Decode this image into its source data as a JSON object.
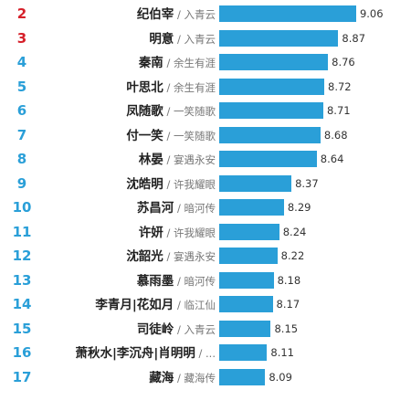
{
  "colors": {
    "bar": "#2a9fd8",
    "rank_top": "#d6202a",
    "rank_normal": "#2a9fd8"
  },
  "chart_data": {
    "type": "bar",
    "orientation": "horizontal",
    "separator": "/",
    "rows": [
      {
        "rank": "2",
        "name": "纪伯宰",
        "work": "入青云",
        "value": 9.06
      },
      {
        "rank": "3",
        "name": "明意",
        "work": "入青云",
        "value": 8.87
      },
      {
        "rank": "4",
        "name": "秦南",
        "work": "余生有涯",
        "value": 8.76
      },
      {
        "rank": "5",
        "name": "叶思北",
        "work": "余生有涯",
        "value": 8.72
      },
      {
        "rank": "6",
        "name": "凤随歌",
        "work": "一笑随歌",
        "value": 8.71
      },
      {
        "rank": "7",
        "name": "付一笑",
        "work": "一笑随歌",
        "value": 8.68
      },
      {
        "rank": "8",
        "name": "林晏",
        "work": "宴遇永安",
        "value": 8.64
      },
      {
        "rank": "9",
        "name": "沈皓明",
        "work": "许我耀眼",
        "value": 8.37
      },
      {
        "rank": "10",
        "name": "苏昌河",
        "work": "暗河传",
        "value": 8.29
      },
      {
        "rank": "11",
        "name": "许妍",
        "work": "许我耀眼",
        "value": 8.24
      },
      {
        "rank": "12",
        "name": "沈韶光",
        "work": "宴遇永安",
        "value": 8.22
      },
      {
        "rank": "13",
        "name": "慕雨墨",
        "work": "暗河传",
        "value": 8.18
      },
      {
        "rank": "14",
        "name": "李青月|花如月",
        "work": "临江仙",
        "value": 8.17
      },
      {
        "rank": "15",
        "name": "司徒岭",
        "work": "入青云",
        "value": 8.15
      },
      {
        "rank": "16",
        "name": "萧秋水|李沉舟|肖明明",
        "work": "...",
        "value": 8.11
      },
      {
        "rank": "17",
        "name": "藏海",
        "work": "藏海传",
        "value": 8.09
      }
    ]
  }
}
